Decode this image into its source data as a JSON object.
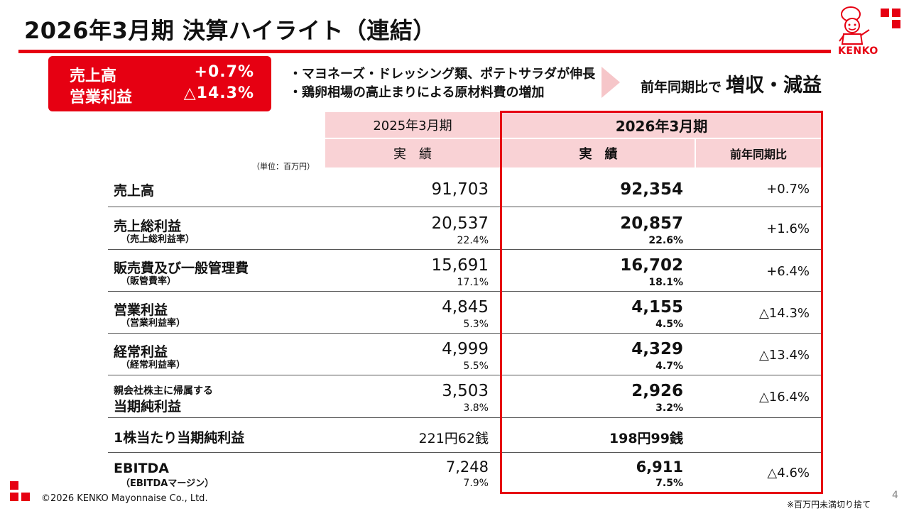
{
  "title": "2026年3月期 決算ハイライト（連結）",
  "brand": {
    "logo_text": "KENKO",
    "accent": "#e60012",
    "header_pink": "#f9d2d5"
  },
  "kpi": [
    {
      "label": "売上高",
      "value": "+0.7%"
    },
    {
      "label": "営業利益",
      "value": "△14.3%"
    }
  ],
  "bullets": [
    "・マヨネーズ・ドレッシング類、ポテトサラダが伸長",
    "・鶏卵相場の高止まりによる原材料費の増加"
  ],
  "conclusion": {
    "prefix": "前年同期比で",
    "result": "増収・減益"
  },
  "unit_note": "（単位：百万円）",
  "table": {
    "prev_period": "2025年3月期",
    "cur_period": "2026年3月期",
    "prev_col": "実　績",
    "cur_col": "実　績",
    "yoy_col": "前年同期比",
    "rows": [
      {
        "label": "売上高",
        "sub": "",
        "prev": "91,703",
        "prev_pct": "",
        "cur": "92,354",
        "cur_pct": "",
        "yoy": "+0.7%"
      },
      {
        "label": "売上総利益",
        "sub": "（売上総利益率）",
        "prev": "20,537",
        "prev_pct": "22.4%",
        "cur": "20,857",
        "cur_pct": "22.6%",
        "yoy": "+1.6%"
      },
      {
        "label": "販売費及び一般管理費",
        "sub": "（販管費率）",
        "prev": "15,691",
        "prev_pct": "17.1%",
        "cur": "16,702",
        "cur_pct": "18.1%",
        "yoy": "+6.4%"
      },
      {
        "label": "営業利益",
        "sub": "（営業利益率）",
        "prev": "4,845",
        "prev_pct": "5.3%",
        "cur": "4,155",
        "cur_pct": "4.5%",
        "yoy": "△14.3%"
      },
      {
        "label": "経常利益",
        "sub": "（経常利益率）",
        "prev": "4,999",
        "prev_pct": "5.5%",
        "cur": "4,329",
        "cur_pct": "4.7%",
        "yoy": "△13.4%"
      },
      {
        "label_top": "親会社株主に帰属する",
        "label": "当期純利益",
        "prev": "3,503",
        "prev_pct": "3.8%",
        "cur": "2,926",
        "cur_pct": "3.2%",
        "yoy": "△16.4%"
      },
      {
        "label": "1株当たり当期純利益",
        "sub": "",
        "prev": "221円62銭",
        "prev_pct": "",
        "cur": "198円99銭",
        "cur_pct": "",
        "yoy": ""
      },
      {
        "label": "EBITDA",
        "sub": "（EBITDAマージン）",
        "prev": "7,248",
        "prev_pct": "7.9%",
        "cur": "6,911",
        "cur_pct": "7.5%",
        "yoy": "△4.6%"
      }
    ]
  },
  "footer": "©2026 KENKO Mayonnaise Co., Ltd.",
  "note": "※百万円未満切り捨て",
  "page_number": "4"
}
